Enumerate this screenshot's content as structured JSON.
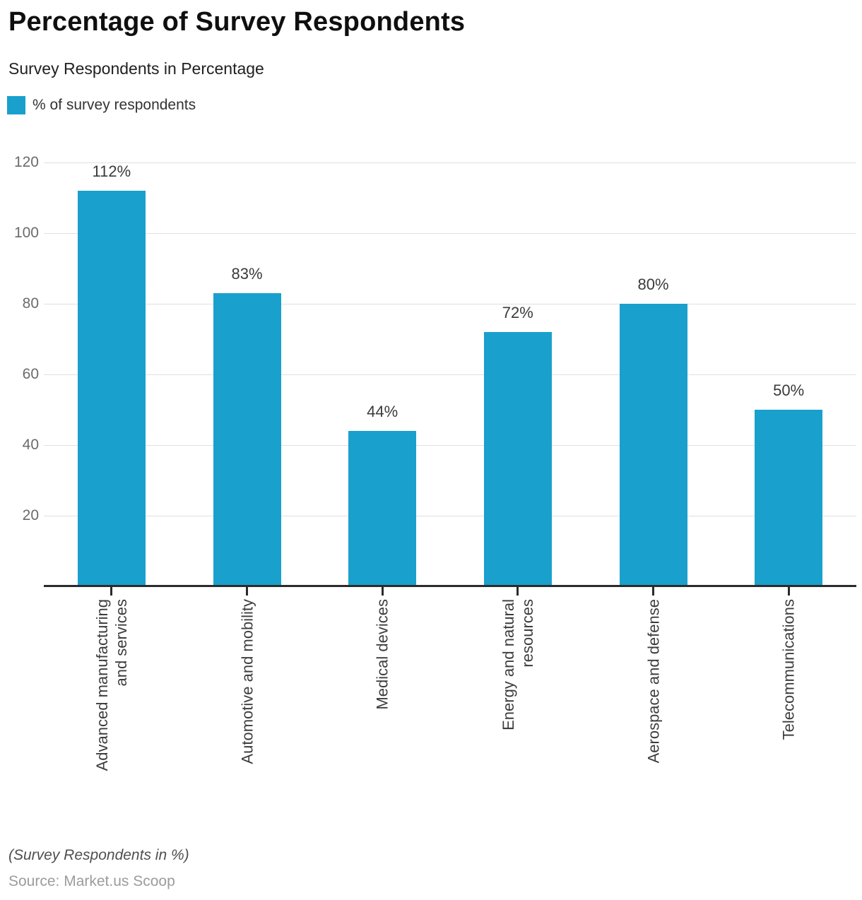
{
  "title": "Percentage of Survey Respondents",
  "subtitle": "Survey Respondents in Percentage",
  "legend": {
    "label": "% of survey respondents",
    "swatch_color": "#1AA0CD"
  },
  "footnote": "(Survey Respondents in %)",
  "source": "Source: Market.us Scoop",
  "colors": {
    "bar": "#1AA0CD",
    "gridline": "#E0E0E0",
    "axis_line": "#2B2B2B",
    "value_label": "#3A3A3A",
    "ytick_label": "#6B6B6B",
    "category_label": "#3D3D3D"
  },
  "chart_data": {
    "type": "bar",
    "title": "Percentage of Survey Respondents",
    "subtitle": "Survey Respondents in Percentage",
    "categories": [
      "Advanced manufacturing and services",
      "Automotive and mobility",
      "Medical devices",
      "Energy and natural resources",
      "Aerospace and defense",
      "Telecommunications"
    ],
    "category_label_lines": [
      [
        "Advanced manufacturing",
        "and services"
      ],
      [
        "Automotive and mobility"
      ],
      [
        "Medical devices"
      ],
      [
        "Energy and natural",
        "resources"
      ],
      [
        "Aerospace and defense"
      ],
      [
        "Telecommunications"
      ]
    ],
    "series": [
      {
        "name": "% of survey respondents",
        "values": [
          112,
          83,
          44,
          72,
          80,
          50
        ]
      }
    ],
    "data_labels": [
      "112%",
      "83%",
      "44%",
      "72%",
      "80%",
      "50%"
    ],
    "value_suffix": "%",
    "xlabel": "",
    "ylabel": "",
    "ylim": [
      0,
      120
    ],
    "yticks": [
      20,
      40,
      60,
      80,
      100,
      120
    ],
    "grid": "horizontal",
    "legend_position": "top-left",
    "footnote": "(Survey Respondents in %)",
    "source": "Source: Market.us Scoop"
  }
}
